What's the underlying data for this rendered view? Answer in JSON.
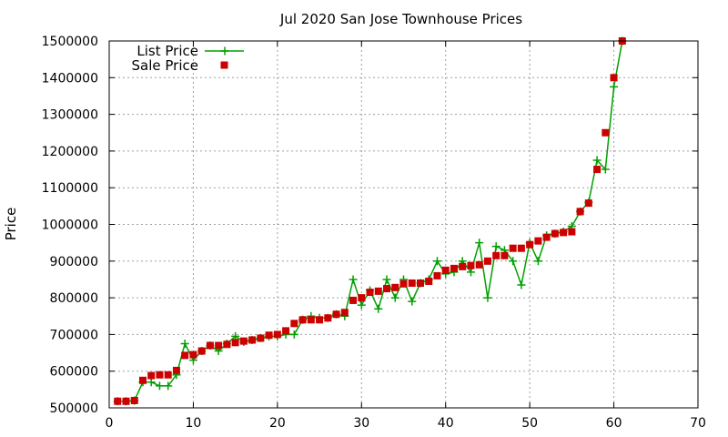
{
  "chart_data": {
    "type": "line",
    "title": "Jul 2020 San Jose Townhouse Prices",
    "xlabel": "",
    "ylabel": "Price",
    "xlim": [
      0,
      70
    ],
    "ylim": [
      500000,
      1500000
    ],
    "xticks": [
      0,
      10,
      20,
      30,
      40,
      50,
      60,
      70
    ],
    "yticks": [
      500000,
      600000,
      700000,
      800000,
      900000,
      1000000,
      1100000,
      1200000,
      1300000,
      1400000,
      1500000
    ],
    "grid": true,
    "legend_position": "top-left",
    "series": [
      {
        "name": "List Price",
        "color": "#00a000",
        "marker": "plus",
        "x": [
          1,
          2,
          3,
          4,
          5,
          6,
          7,
          8,
          9,
          10,
          11,
          12,
          13,
          14,
          15,
          16,
          17,
          18,
          19,
          20,
          21,
          22,
          23,
          24,
          25,
          26,
          27,
          28,
          29,
          30,
          31,
          32,
          33,
          34,
          35,
          36,
          37,
          38,
          39,
          40,
          41,
          42,
          43,
          44,
          45,
          46,
          47,
          48,
          49,
          50,
          51,
          52,
          53,
          54,
          55,
          56,
          57,
          58,
          59,
          60,
          61
        ],
        "values": [
          518000,
          518000,
          520000,
          570000,
          570000,
          560000,
          560000,
          590000,
          675000,
          630000,
          655000,
          670000,
          655000,
          675000,
          695000,
          680000,
          685000,
          690000,
          695000,
          695000,
          700000,
          700000,
          740000,
          750000,
          745000,
          745000,
          755000,
          750000,
          850000,
          780000,
          820000,
          770000,
          850000,
          800000,
          850000,
          790000,
          840000,
          850000,
          900000,
          865000,
          870000,
          900000,
          870000,
          950000,
          800000,
          940000,
          930000,
          900000,
          835000,
          950000,
          900000,
          970000,
          975000,
          980000,
          995000,
          1035000,
          1060000,
          1175000,
          1150000,
          1375000,
          1500000
        ]
      },
      {
        "name": "Sale Price",
        "color": "#cc0000",
        "marker": "square",
        "x": [
          1,
          2,
          3,
          4,
          5,
          6,
          7,
          8,
          9,
          10,
          11,
          12,
          13,
          14,
          15,
          16,
          17,
          18,
          19,
          20,
          21,
          22,
          23,
          24,
          25,
          26,
          27,
          28,
          29,
          30,
          31,
          32,
          33,
          34,
          35,
          36,
          37,
          38,
          39,
          40,
          41,
          42,
          43,
          44,
          45,
          46,
          47,
          48,
          49,
          50,
          51,
          52,
          53,
          54,
          55,
          56,
          57,
          58,
          59,
          60,
          61
        ],
        "values": [
          518000,
          518000,
          520000,
          575000,
          588000,
          590000,
          590000,
          602000,
          643000,
          645000,
          655000,
          670000,
          670000,
          673000,
          678000,
          682000,
          685000,
          690000,
          698000,
          700000,
          710000,
          730000,
          740000,
          740000,
          740000,
          745000,
          755000,
          760000,
          793000,
          800000,
          815000,
          818000,
          825000,
          828000,
          838000,
          840000,
          840000,
          845000,
          860000,
          875000,
          880000,
          885000,
          888000,
          890000,
          900000,
          915000,
          915000,
          935000,
          935000,
          945000,
          955000,
          965000,
          975000,
          978000,
          980000,
          1035000,
          1058000,
          1150000,
          1250000,
          1400000,
          1500000
        ]
      }
    ]
  }
}
